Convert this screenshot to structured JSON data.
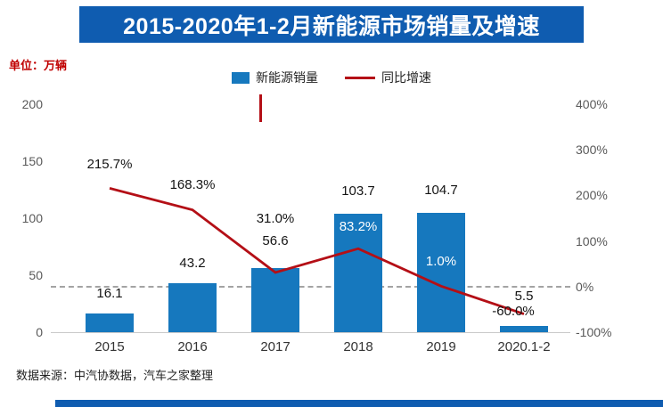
{
  "title": "2015-2020年1-2月新能源市场销量及增速",
  "unit_label": "单位：万辆",
  "legend": [
    {
      "label": "新能源销量",
      "type": "bar"
    },
    {
      "label": "同比增速",
      "type": "line"
    }
  ],
  "source_note": "数据来源：中汽协数据，汽车之家整理",
  "colors": {
    "banner_bg": "#0f5cb0",
    "bar": "#1678be",
    "line": "#b40f16",
    "unit_text": "#c00000"
  },
  "chart_data": {
    "type": "bar+line",
    "title": "2015-2020年1-2月新能源市场销量及增速",
    "categories": [
      "2015",
      "2016",
      "2017",
      "2018",
      "2019",
      "2020.1-2"
    ],
    "series": [
      {
        "name": "新能源销量",
        "type": "bar",
        "axis": "left",
        "values": [
          16.1,
          43.2,
          56.6,
          103.7,
          104.7,
          5.5
        ],
        "labels": [
          "16.1",
          "43.2",
          "56.6",
          "103.7",
          "104.7",
          "5.5"
        ]
      },
      {
        "name": "同比增速",
        "type": "line",
        "axis": "right",
        "values": [
          215.7,
          168.3,
          31.0,
          83.2,
          1.0,
          -60.0
        ],
        "labels": [
          "215.7%",
          "168.3%",
          "31.0%",
          "83.2%",
          "1.0%",
          "-60.0%"
        ]
      }
    ],
    "left_axis": {
      "unit": "万辆",
      "range": [
        0,
        200
      ],
      "ticks": [
        0,
        50,
        100,
        150,
        200
      ]
    },
    "right_axis": {
      "range": [
        -100,
        400
      ],
      "ticks": [
        "-100%",
        "0%",
        "100%",
        "200%",
        "300%",
        "400%"
      ]
    },
    "zero_growth_dashline": true,
    "legend_position": "top",
    "grid": false
  }
}
